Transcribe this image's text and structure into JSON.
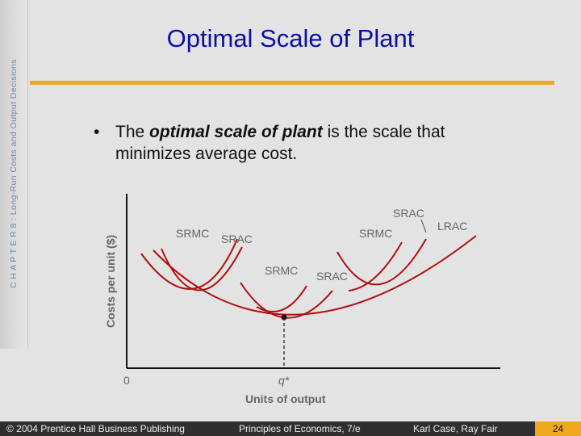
{
  "sidebar": {
    "chapter_text": "C H A P T E R 8 :  Long-Run Costs and Output Decisions"
  },
  "slide": {
    "title": "Optimal Scale of Plant",
    "bullet": {
      "marker": "•",
      "before": "The ",
      "emphasis": "optimal scale of plant",
      "after": " is the scale that minimizes average cost."
    }
  },
  "chart_data": {
    "type": "line",
    "xlabel": "Units of output",
    "ylabel": "Costs per unit ($)",
    "origin_label": "0",
    "optimal_output_label": "q*",
    "curve_labels": {
      "left_srmc": "SRMC",
      "left_srac": "SRAC",
      "mid_srmc": "SRMC",
      "mid_srac": "SRAC",
      "right_srac": "SRAC",
      "right_srmc": "SRMC",
      "lrac": "LRAC"
    },
    "series": [
      {
        "name": "LRAC",
        "shape": "U-shaped envelope, minimum at q*"
      },
      {
        "name": "SRAC (small plant)",
        "shape": "U-shaped, left of q*"
      },
      {
        "name": "SRAC (optimal plant)",
        "shape": "U-shaped, tangent to LRAC at its minimum q*"
      },
      {
        "name": "SRAC (large plant)",
        "shape": "U-shaped, right of q*"
      },
      {
        "name": "SRMC (each plant)",
        "shape": "upward-sloping, crosses its SRAC at the SRAC minimum"
      }
    ]
  },
  "footer": {
    "copyright": "© 2004 Prentice Hall Business Publishing",
    "book": "Principles of Economics, 7/e",
    "authors": "Karl Case, Ray Fair",
    "page": "24"
  },
  "colors": {
    "title": "#0b0fa3",
    "accent_rule": "#f0a820",
    "curve": "#b01010",
    "axis": "#111111",
    "label": "#666666",
    "footer_bg": "#2f2f2f"
  }
}
